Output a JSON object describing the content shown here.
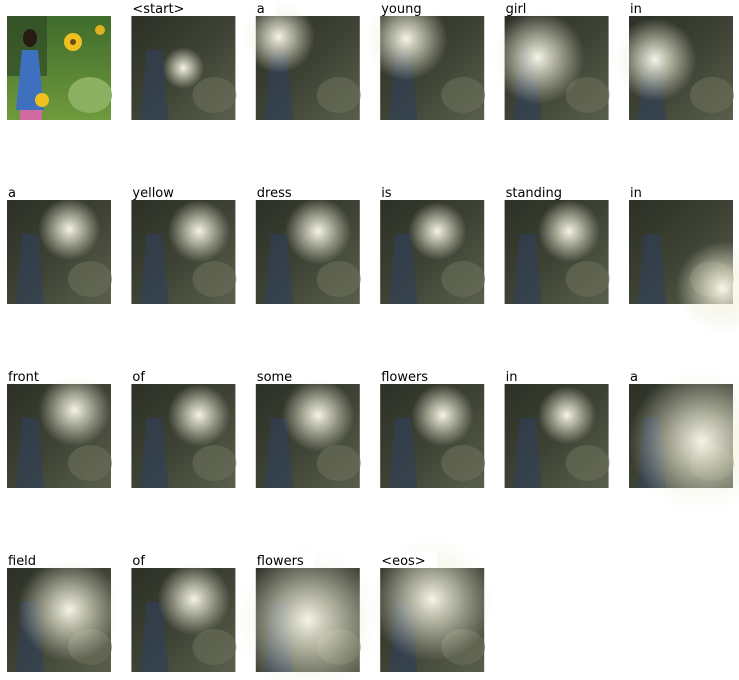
{
  "caption_words": [
    "<start>",
    "a",
    "young",
    "girl",
    "in",
    "a",
    "yellow",
    "dress",
    "is",
    "standing",
    "in",
    "front",
    "of",
    "some",
    "flowers",
    "in",
    "a",
    "field",
    "of",
    "flowers",
    "<eos>"
  ]
}
